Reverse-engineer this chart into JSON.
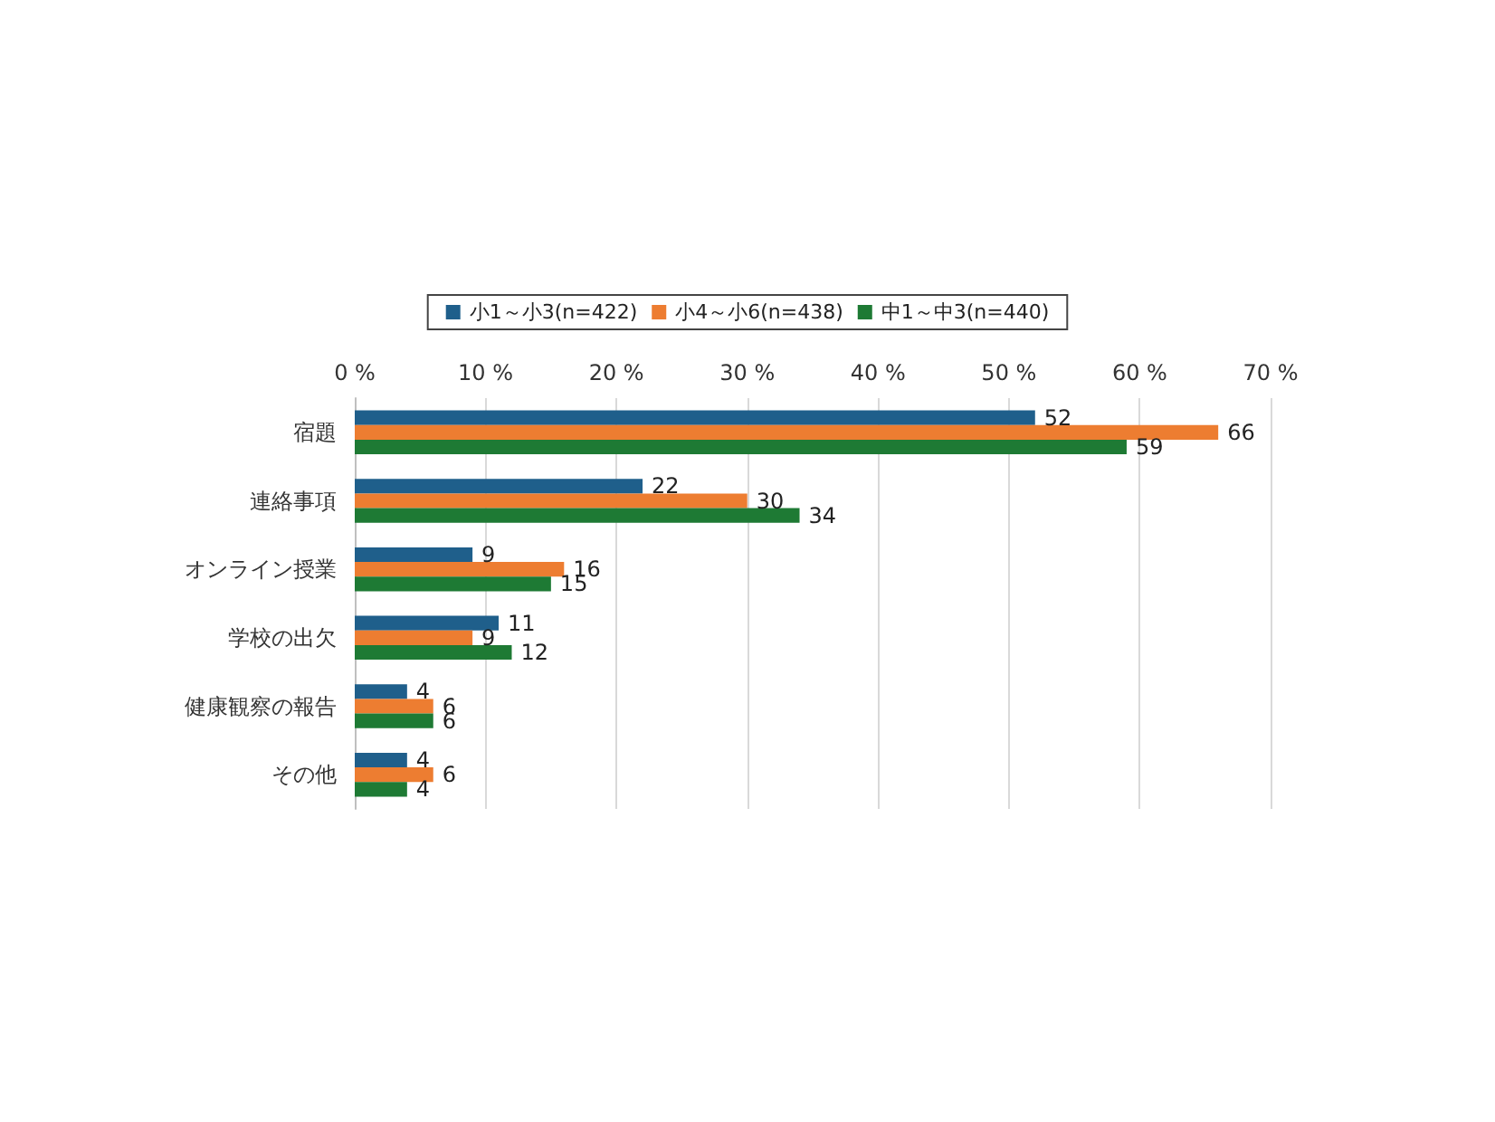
{
  "chart_data": {
    "type": "bar",
    "orientation": "horizontal",
    "categories": [
      "宿題",
      "連絡事項",
      "オンライン授業",
      "学校の出欠",
      "健康観察の報告",
      "その他"
    ],
    "series": [
      {
        "name": "小1～小3(n=422)",
        "color": "#1f5f8b",
        "values": [
          52,
          22,
          9,
          11,
          4,
          4
        ]
      },
      {
        "name": "小4～小6(n=438)",
        "color": "#ed7d31",
        "values": [
          66,
          30,
          16,
          9,
          6,
          6
        ]
      },
      {
        "name": "中1～中3(n=440)",
        "color": "#1e7a34",
        "values": [
          59,
          34,
          15,
          12,
          6,
          4
        ]
      }
    ],
    "xlim": [
      0,
      70
    ],
    "xticks": [
      {
        "value": 0,
        "label": "0 %"
      },
      {
        "value": 10,
        "label": "10 %"
      },
      {
        "value": 20,
        "label": "20 %"
      },
      {
        "value": 30,
        "label": "30 %"
      },
      {
        "value": 40,
        "label": "40 %"
      },
      {
        "value": 50,
        "label": "50 %"
      },
      {
        "value": 60,
        "label": "60 %"
      },
      {
        "value": 70,
        "label": "70 %"
      }
    ],
    "grid": "x",
    "legend": "top",
    "data_labels": true
  }
}
